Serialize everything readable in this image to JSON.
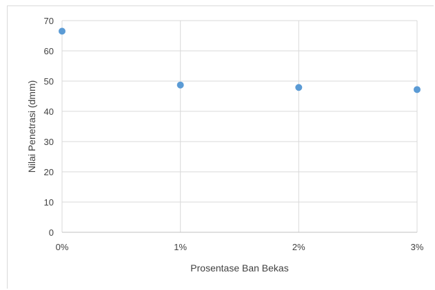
{
  "chart_data": {
    "type": "scatter",
    "title": "",
    "xlabel": "Prosentase Ban Bekas",
    "ylabel": "Nilai Penetrasi (dmm)",
    "x": [
      0,
      1,
      2,
      3
    ],
    "x_tick_labels": [
      "0%",
      "1%",
      "2%",
      "3%"
    ],
    "y": [
      66.5,
      48.7,
      47.9,
      47.2
    ],
    "ylim": [
      0,
      70
    ],
    "y_ticks": [
      0,
      10,
      20,
      30,
      40,
      50,
      60,
      70
    ],
    "xlim": [
      0,
      3
    ],
    "grid": true,
    "legend": "none",
    "marker_color": "#5b9bd5"
  }
}
